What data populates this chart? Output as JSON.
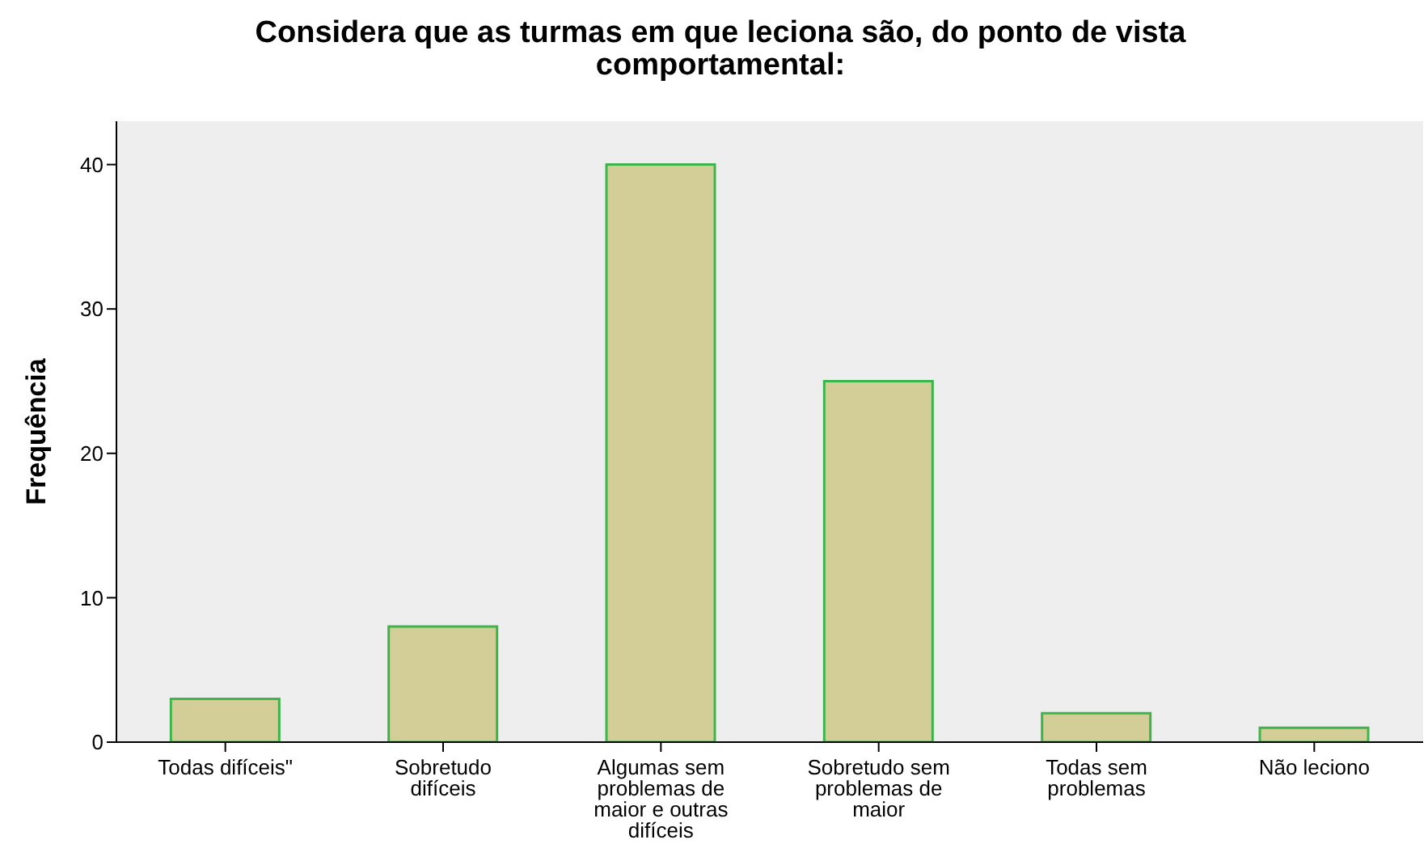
{
  "chart_data": {
    "type": "bar",
    "title": "Considera que as turmas em que leciona são, do ponto de vista comportamental:",
    "ylabel": "Frequência",
    "categories": [
      "Todas difíceis\"",
      "Sobretudo difíceis",
      "Algumas sem problemas de maior e outras difíceis",
      "Sobretudo sem problemas de maior",
      "Todas sem problemas",
      "Não leciono"
    ],
    "values": [
      3,
      8,
      40,
      25,
      2,
      1
    ],
    "color": "#d3cd98",
    "ylim": [
      0,
      43
    ],
    "yticks": [
      0,
      10,
      20,
      30,
      40
    ]
  }
}
